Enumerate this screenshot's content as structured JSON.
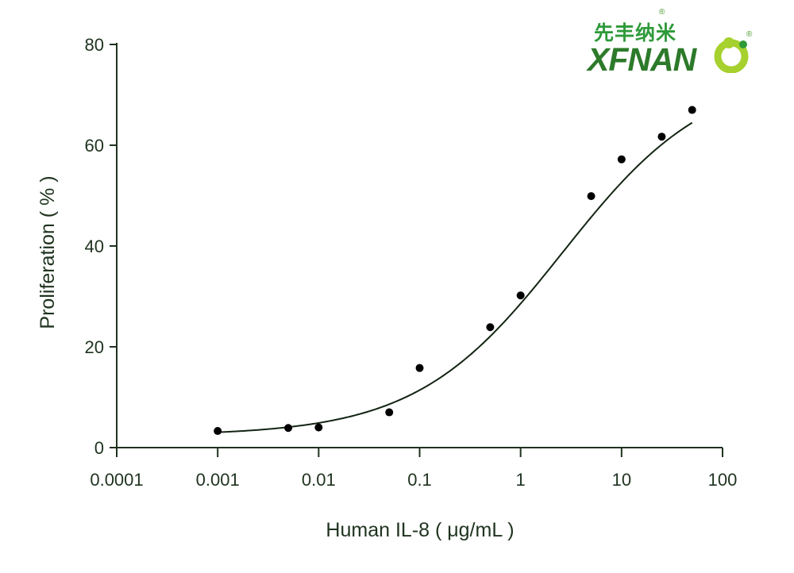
{
  "chart_data": {
    "type": "scatter",
    "xlabel": "Human IL-8 ( μg/mL )",
    "ylabel": "Proliferation ( % )",
    "x_scale": "log",
    "xlim": [
      0.0001,
      100
    ],
    "ylim": [
      0,
      80
    ],
    "x_ticks": [
      "0.0001",
      "0.001",
      "0.01",
      "0.1",
      "1",
      "10",
      "100"
    ],
    "y_ticks": [
      "0",
      "20",
      "40",
      "60",
      "80"
    ],
    "grid": false,
    "series": [
      {
        "x": [
          0.001,
          0.005,
          0.01,
          0.05,
          0.1,
          0.5,
          1,
          5,
          10,
          25,
          50
        ],
        "y": [
          3.3,
          3.9,
          4.0,
          7.0,
          15.8,
          23.9,
          30.2,
          49.9,
          57.2,
          61.7,
          67.0
        ]
      }
    ],
    "fit_curve": {
      "model": "4PL",
      "bottom": 2.4,
      "top": 75,
      "ec50": 2.6,
      "hill": 0.6
    },
    "colors": {
      "marks": "#000000",
      "curve": "#132413",
      "axis": "#1f331f"
    }
  },
  "logo": {
    "chinese": "先丰纳米",
    "english": "XFNAN",
    "registered": "®",
    "colors": {
      "green": "#2e9a3a",
      "lime": "#a6d12e",
      "dark": "#2c7a2a"
    }
  }
}
